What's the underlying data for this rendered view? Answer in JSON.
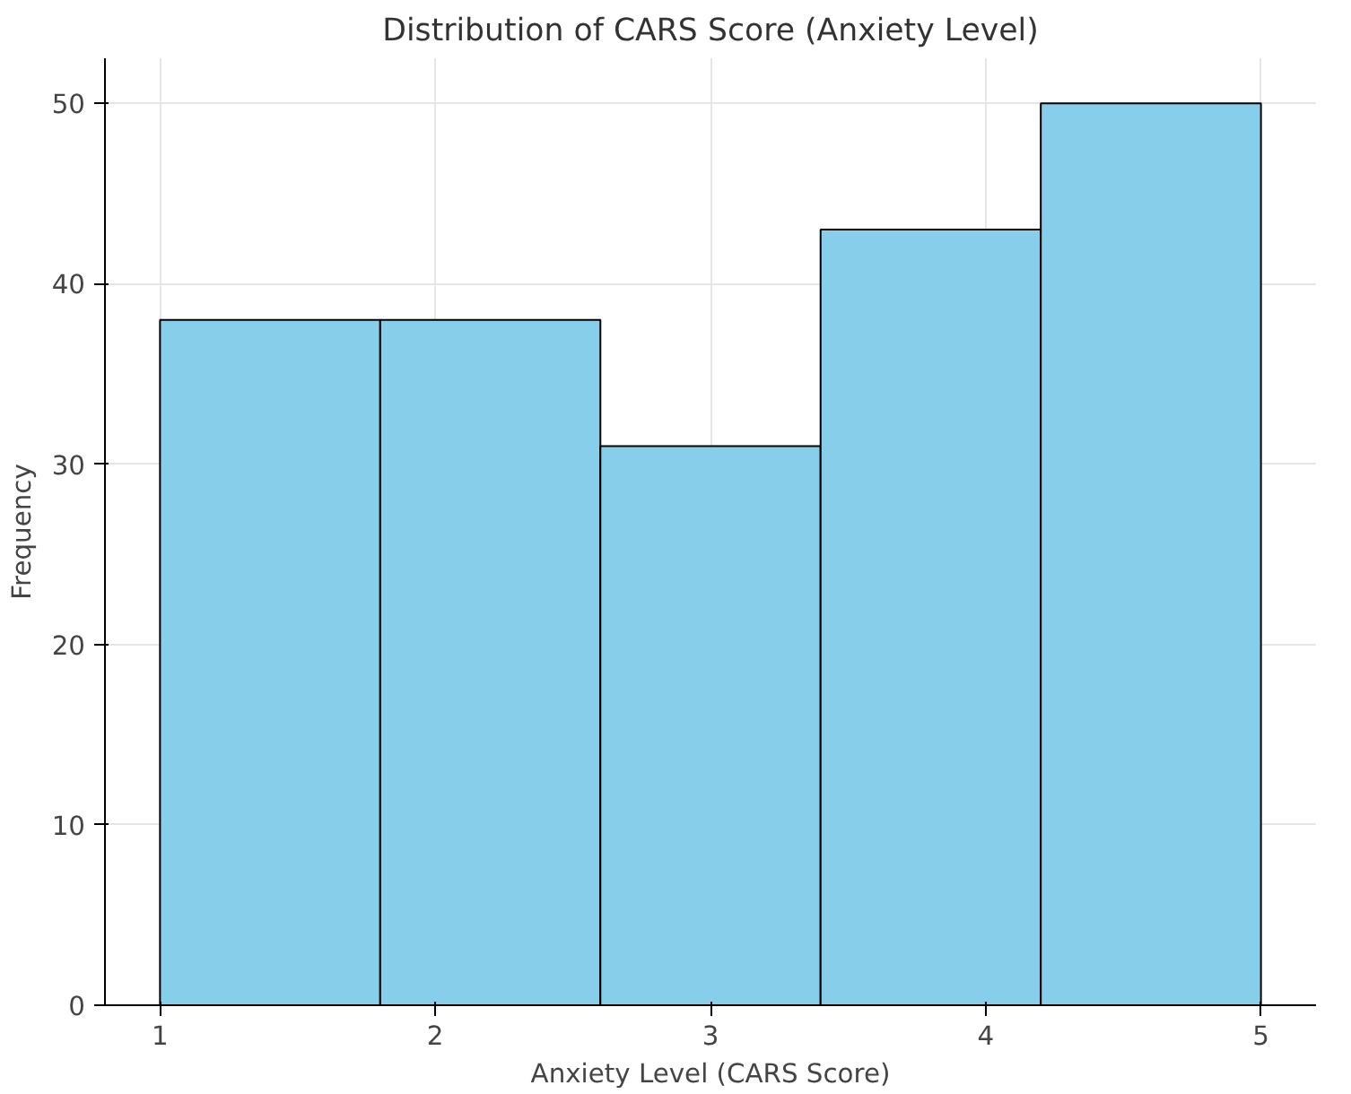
{
  "chart_data": {
    "type": "histogram",
    "title": "Distribution of CARS Score (Anxiety Level)",
    "xlabel": "Anxiety Level (CARS Score)",
    "ylabel": "Frequency",
    "bins": [
      1,
      1.8,
      2.6,
      3.4,
      4.2,
      5
    ],
    "values": [
      38,
      38,
      31,
      43,
      50
    ],
    "color": "#87ceeb",
    "xlim": [
      0.8,
      5.2
    ],
    "xticks": [
      1,
      2,
      3,
      4,
      5
    ],
    "ylim": [
      0,
      52.5
    ],
    "yticks": [
      0,
      10,
      20,
      30,
      40,
      50
    ],
    "grid": true
  }
}
